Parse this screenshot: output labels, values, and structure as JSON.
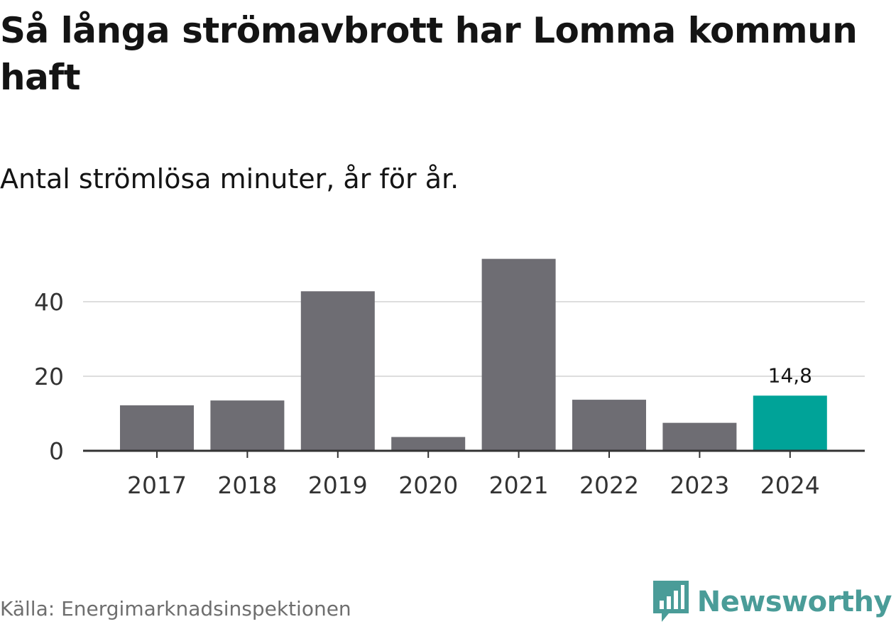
{
  "header": {
    "title": "Så långa strömavbrott har Lomma kommun haft",
    "subtitle": "Antal strömlösa minuter, år för år."
  },
  "footer": {
    "source": "Källa: Energimarknadsinspektionen",
    "brand": "Newsworthy"
  },
  "colors": {
    "bar": "#6e6d73",
    "highlight": "#00a398",
    "gridline": "#dddddd",
    "axis": "#333333",
    "brand": "#4a9c98"
  },
  "chart_data": {
    "type": "bar",
    "title": "Så långa strömavbrott har Lomma kommun haft",
    "subtitle": "Antal strömlösa minuter, år för år.",
    "xlabel": "",
    "ylabel": "",
    "categories": [
      "2017",
      "2018",
      "2019",
      "2020",
      "2021",
      "2022",
      "2023",
      "2024"
    ],
    "values": [
      12.2,
      13.5,
      42.8,
      3.7,
      51.5,
      13.7,
      7.5,
      14.8
    ],
    "highlight_index": 7,
    "data_labels": [
      {
        "index": 7,
        "text": "14,8"
      }
    ],
    "yticks": [
      0,
      20,
      40
    ],
    "ytick_labels": [
      "0",
      "20",
      "40"
    ],
    "ylim": [
      0,
      55
    ],
    "grid": true,
    "legend": "none"
  }
}
